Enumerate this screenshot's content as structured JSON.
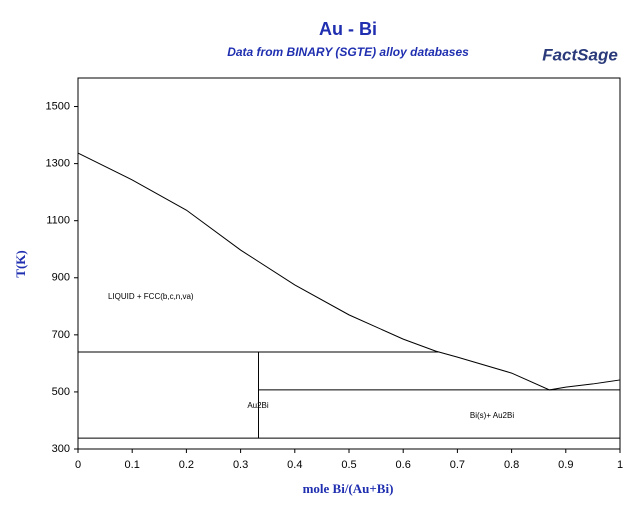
{
  "chart_data": {
    "type": "line",
    "title": "Au - Bi",
    "subtitle": "Data from BINARY (SGTE) alloy databases",
    "logo": "FactSage",
    "x_label": "mole Bi/(Au+Bi)",
    "y_label": "T(K)",
    "xlim": [
      0,
      1
    ],
    "xticks": [
      0,
      0.1,
      0.2,
      0.3,
      0.4,
      0.5,
      0.6,
      0.7,
      0.8,
      0.9,
      1
    ],
    "ylim": [
      300,
      1600
    ],
    "yticks": [
      300,
      500,
      700,
      900,
      1100,
      1300,
      1500
    ],
    "series": [
      {
        "color": "#000000",
        "x": [
          0,
          0.1,
          0.2,
          0.3,
          0.4,
          0.5,
          0.6,
          0.66,
          0.7,
          0.8,
          0.87,
          0.9,
          0.95,
          1
        ],
        "values": [
          1337,
          1243,
          1137,
          997,
          875,
          770,
          685,
          643,
          622,
          566,
          507,
          517,
          528,
          542
        ]
      },
      {
        "color": "#000000",
        "x": [
          0,
          0.667
        ],
        "values": [
          640,
          640
        ]
      },
      {
        "color": "#000000",
        "x": [
          0.333,
          1
        ],
        "values": [
          507,
          507
        ]
      },
      {
        "color": "#000000",
        "x": [
          0,
          1
        ],
        "values": [
          338,
          338
        ]
      },
      {
        "color": "#000000",
        "x": [
          0.333,
          0.333
        ],
        "values": [
          338,
          640
        ]
      }
    ],
    "annotations": [
      "LIQUID + FCC(b,c,n,va)",
      "Au2Bi",
      "Bi(s)+ Au2Bi"
    ]
  }
}
